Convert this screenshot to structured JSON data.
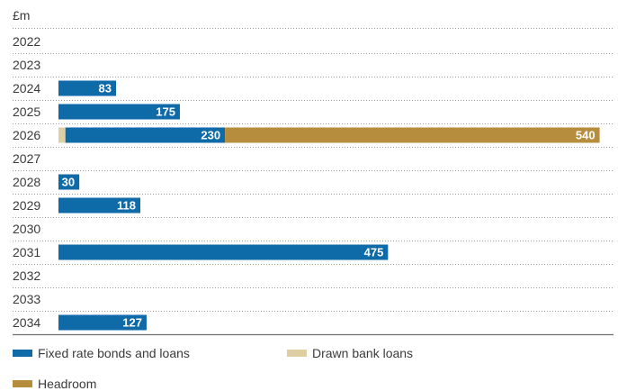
{
  "chart_data": {
    "type": "bar",
    "orientation": "horizontal",
    "stacked": true,
    "unit_label": "£m",
    "categories": [
      "2022",
      "2023",
      "2024",
      "2025",
      "2026",
      "2027",
      "2028",
      "2029",
      "2030",
      "2031",
      "2032",
      "2033",
      "2034"
    ],
    "series": [
      {
        "name": "Fixed rate bonds and loans",
        "color": "#0f6aa8",
        "values": [
          null,
          null,
          83,
          175,
          230,
          null,
          30,
          118,
          null,
          475,
          null,
          null,
          127
        ]
      },
      {
        "name": "Drawn bank loans",
        "color": "#dfd0a4",
        "values": [
          null,
          null,
          null,
          null,
          10,
          null,
          null,
          null,
          null,
          null,
          null,
          null,
          null
        ]
      },
      {
        "name": "Headroom",
        "color": "#b58d3d",
        "values": [
          null,
          null,
          null,
          null,
          540,
          null,
          null,
          null,
          null,
          null,
          null,
          null,
          null
        ]
      }
    ],
    "stack_order": [
      "Drawn bank loans",
      "Fixed rate bonds and loans",
      "Headroom"
    ],
    "xlim": [
      0,
      800
    ],
    "grid": "dotted row separators",
    "legend_position": "bottom"
  }
}
